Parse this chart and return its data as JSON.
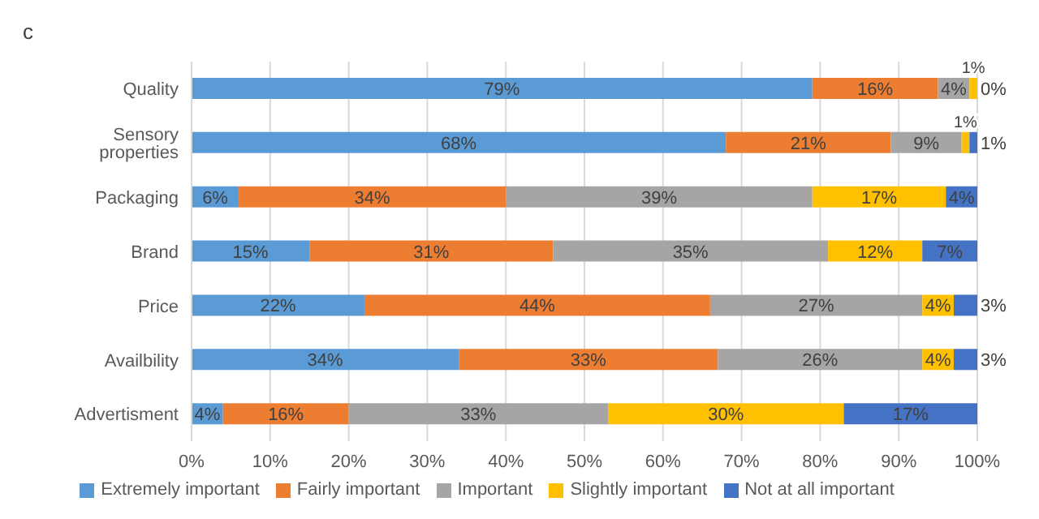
{
  "chart_data": {
    "type": "bar",
    "title": "c",
    "orientation": "horizontal",
    "stacked": true,
    "categories": [
      "Quality",
      "Sensory properties",
      "Packaging",
      "Brand",
      "Price",
      "Availbility",
      "Advertisment"
    ],
    "series": [
      {
        "name": "Extremely important",
        "color": "#5b9bd5",
        "values": [
          79,
          68,
          6,
          15,
          22,
          34,
          4
        ],
        "value_labels": [
          "79%",
          "68%",
          "6%",
          "15%",
          "22%",
          "34%",
          "4%"
        ]
      },
      {
        "name": "Fairly important",
        "color": "#ed7d31",
        "values": [
          16,
          21,
          34,
          31,
          44,
          33,
          16
        ],
        "value_labels": [
          "16%",
          "21%",
          "34%",
          "31%",
          "44%",
          "33%",
          "16%"
        ]
      },
      {
        "name": "Important",
        "color": "#a5a5a5",
        "values": [
          4,
          9,
          39,
          35,
          27,
          26,
          33
        ],
        "value_labels": [
          "4%",
          "9%",
          "39%",
          "35%",
          "27%",
          "26%",
          "33%"
        ]
      },
      {
        "name": "Slightly important",
        "color": "#ffc000",
        "values": [
          1,
          1,
          17,
          12,
          4,
          4,
          30
        ],
        "value_labels": [
          "1%",
          "1%",
          "17%",
          "12%",
          "4%",
          "4%",
          "30%"
        ]
      },
      {
        "name": "Not at all important",
        "color": "#4472c4",
        "values": [
          0,
          1,
          4,
          7,
          3,
          3,
          17
        ],
        "value_labels": [
          "0%",
          "1%",
          "4%",
          "7%",
          "3%",
          "3%",
          "17%"
        ]
      }
    ],
    "xlim": [
      0,
      100
    ],
    "xticks": [
      {
        "value": 0,
        "label": "0%"
      },
      {
        "value": 10,
        "label": "10%"
      },
      {
        "value": 20,
        "label": "20%"
      },
      {
        "value": 30,
        "label": "30%"
      },
      {
        "value": 40,
        "label": "40%"
      },
      {
        "value": 50,
        "label": "50%"
      },
      {
        "value": 60,
        "label": "60%"
      },
      {
        "value": 70,
        "label": "70%"
      },
      {
        "value": 80,
        "label": "80%"
      },
      {
        "value": 90,
        "label": "90%"
      },
      {
        "value": 100,
        "label": "100%"
      }
    ],
    "grid": "x",
    "legend": "bottom"
  }
}
